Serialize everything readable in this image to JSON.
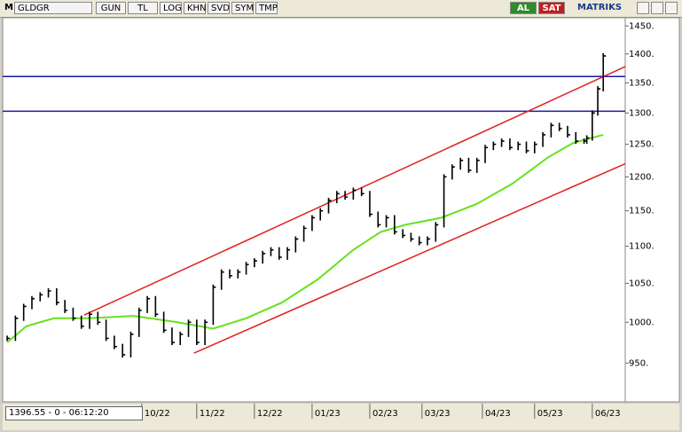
{
  "toolbar": {
    "symbol_prefix": "M",
    "symbol": "GLDGR",
    "buttons": [
      "GUN",
      "TL",
      "LOG",
      "KHN",
      "SVD",
      "SYM",
      "TMP"
    ],
    "buy": "AL",
    "sell": "SAT",
    "brand": "MATRIKS"
  },
  "status": "1396.55 - 0 - 06:12:20",
  "chart_data": {
    "type": "hlc",
    "log": true,
    "xlim": [
      0,
      226
    ],
    "ylim": [
      906,
      1465
    ],
    "yticks": [
      {
        "value": 1450,
        "label": "1450."
      },
      {
        "value": 1400,
        "label": "1400."
      },
      {
        "value": 1350,
        "label": "1350."
      },
      {
        "value": 1300,
        "label": "1300."
      },
      {
        "value": 1250,
        "label": "1250."
      },
      {
        "value": 1200,
        "label": "1200."
      },
      {
        "value": 1150,
        "label": "1150."
      },
      {
        "value": 1100,
        "label": "1100."
      },
      {
        "value": 1050,
        "label": "1050."
      },
      {
        "value": 1000,
        "label": "1000."
      },
      {
        "value": 950,
        "label": "950."
      }
    ],
    "xticks": [
      {
        "value": 50,
        "label": "10/22"
      },
      {
        "value": 70,
        "label": "11/22"
      },
      {
        "value": 91,
        "label": "12/22"
      },
      {
        "value": 112,
        "label": "01/23"
      },
      {
        "value": 133,
        "label": "02/23"
      },
      {
        "value": 152,
        "label": "03/23"
      },
      {
        "value": 174,
        "label": "04/23"
      },
      {
        "value": 193,
        "label": "05/23"
      },
      {
        "value": 214,
        "label": "06/23"
      }
    ],
    "price": {
      "color": "#000000",
      "x": [
        1,
        4,
        7,
        10,
        13,
        16,
        19,
        22,
        25,
        28,
        31,
        34,
        37,
        40,
        43,
        46,
        49,
        52,
        55,
        58,
        61,
        64,
        67,
        70,
        73,
        76,
        79,
        82,
        85,
        88,
        91,
        94,
        97,
        100,
        103,
        106,
        109,
        112,
        115,
        118,
        121,
        124,
        127,
        130,
        133,
        136,
        139,
        142,
        145,
        148,
        151,
        154,
        157,
        160,
        163,
        166,
        169,
        172,
        175,
        178,
        181,
        184,
        187,
        190,
        193,
        196,
        199,
        202,
        205,
        208,
        211,
        212,
        214,
        216,
        218
      ],
      "values": [
        980,
        1005,
        1020,
        1030,
        1035,
        1040,
        1025,
        1015,
        1005,
        995,
        1010,
        1000,
        980,
        970,
        960,
        985,
        1015,
        1030,
        1010,
        990,
        975,
        985,
        1000,
        975,
        1000,
        1045,
        1065,
        1060,
        1065,
        1075,
        1080,
        1090,
        1095,
        1085,
        1095,
        1110,
        1125,
        1140,
        1150,
        1165,
        1175,
        1170,
        1180,
        1175,
        1145,
        1130,
        1140,
        1120,
        1115,
        1110,
        1105,
        1110,
        1130,
        1200,
        1215,
        1225,
        1210,
        1225,
        1245,
        1250,
        1255,
        1245,
        1250,
        1240,
        1250,
        1265,
        1280,
        1275,
        1265,
        1255,
        1255,
        1260,
        1300,
        1340,
        1396.55
      ]
    },
    "ma": {
      "color": "#66e21e",
      "x": [
        1,
        8,
        18,
        31,
        47,
        63,
        76,
        88,
        101,
        114,
        127,
        137,
        146,
        159,
        172,
        185,
        198,
        207,
        218
      ],
      "values": [
        975,
        995,
        1005,
        1005,
        1008,
        1000,
        992,
        1005,
        1025,
        1055,
        1095,
        1120,
        1130,
        1140,
        1160,
        1190,
        1230,
        1252,
        1265
      ]
    },
    "channels": [
      {
        "color": "#e02020",
        "x": [
          29,
          226
        ],
        "values": [
          1009,
          1378
        ]
      },
      {
        "color": "#e02020",
        "x": [
          69,
          226
        ],
        "values": [
          962,
          1220
        ]
      }
    ],
    "hlines": [
      {
        "color": "#1a1aa0",
        "value": 1361
      },
      {
        "color": "#1a1aa0",
        "value": 1303
      }
    ]
  }
}
